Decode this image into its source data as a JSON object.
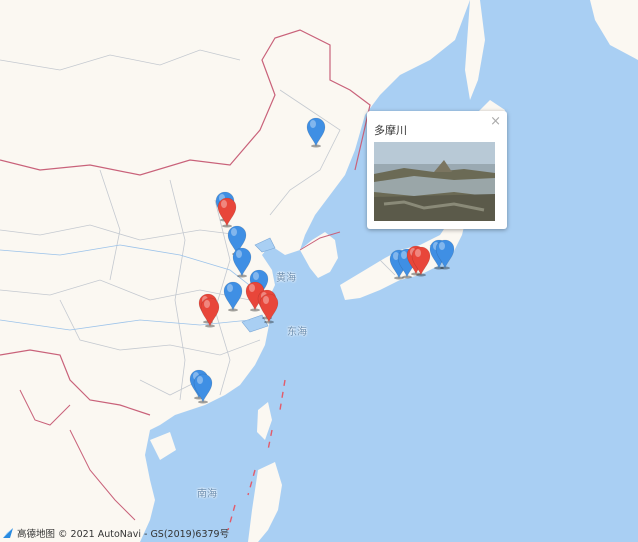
{
  "map": {
    "sea_labels": {
      "yellow_sea": "黄海",
      "east_sea": "东海",
      "south_sea": "南海"
    },
    "colors": {
      "water": "#a9cff3",
      "land": "#fbf8f2",
      "border": "#c9627a",
      "province": "#c4c9d0",
      "blue_marker": "#3f8fe4",
      "red_marker": "#e8463a"
    },
    "markers": [
      {
        "color": "blue"
      },
      {
        "color": "blue"
      },
      {
        "color": "red"
      },
      {
        "color": "blue"
      },
      {
        "color": "blue"
      },
      {
        "color": "blue"
      },
      {
        "color": "red"
      },
      {
        "color": "red"
      },
      {
        "color": "red"
      },
      {
        "color": "blue"
      },
      {
        "color": "red"
      },
      {
        "color": "red"
      },
      {
        "color": "blue"
      },
      {
        "color": "blue"
      },
      {
        "color": "blue"
      },
      {
        "color": "blue"
      },
      {
        "color": "red"
      },
      {
        "color": "red"
      },
      {
        "color": "blue"
      },
      {
        "color": "blue"
      }
    ]
  },
  "popup": {
    "title": "多摩川",
    "close_glyph": "×",
    "photo_icon": "river-photo"
  },
  "attribution": {
    "logo_text": "高德地图",
    "copyright": "© 2021 AutoNavi - GS(2019)6379号"
  }
}
